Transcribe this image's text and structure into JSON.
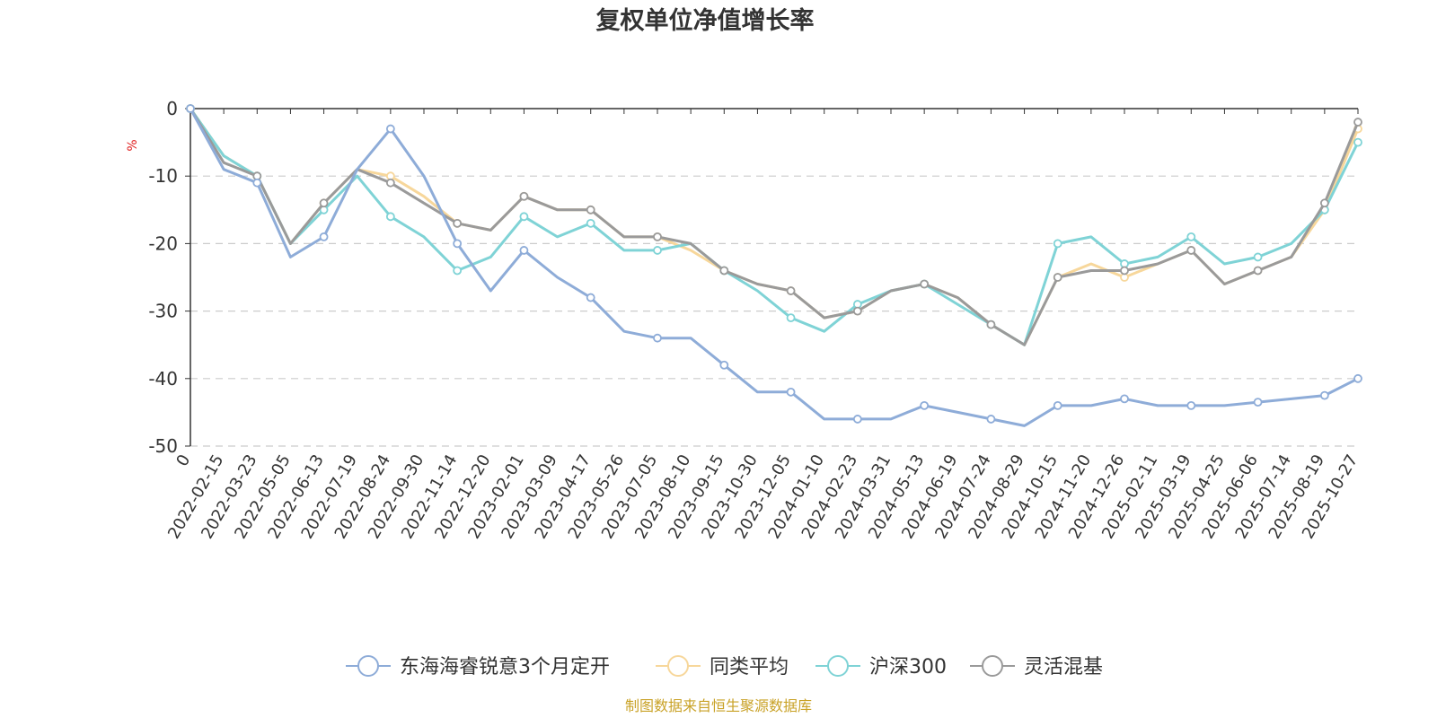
{
  "colors": {
    "fund": "#8eacd8",
    "peer": "#f7d79b",
    "hs300": "#7fd3d6",
    "flex": "#9a9a9a",
    "unit": "#e02020",
    "source": "#c9a227"
  },
  "chart_data": {
    "type": "line",
    "title": "复权单位净值增长率",
    "ylabel": "%",
    "ylim": [
      -50,
      0
    ],
    "yticks": [
      0,
      -10,
      -20,
      -30,
      -40,
      -50
    ],
    "grid": true,
    "legend_position": "bottom",
    "source": "制图数据来自恒生聚源数据库",
    "categories": [
      "0",
      "2022-02-15",
      "2022-03-23",
      "2022-05-05",
      "2022-06-13",
      "2022-07-19",
      "2022-08-24",
      "2022-09-30",
      "2022-11-14",
      "2022-12-20",
      "2023-02-01",
      "2023-03-09",
      "2023-04-17",
      "2023-05-26",
      "2023-07-05",
      "2023-08-10",
      "2023-09-15",
      "2023-10-30",
      "2023-12-05",
      "2024-01-10",
      "2024-02-23",
      "2024-03-31",
      "2024-05-13",
      "2024-06-19",
      "2024-07-24",
      "2024-08-29",
      "2024-10-15",
      "2024-11-20",
      "2024-12-26",
      "2025-02-11",
      "2025-03-19",
      "2025-04-25",
      "2025-06-06",
      "2025-07-14",
      "2025-08-19",
      "2025-10-27"
    ],
    "series": [
      {
        "name": "东海海睿锐意3个月定开",
        "color_key": "fund",
        "values": [
          0,
          -9,
          -11,
          -22,
          -19,
          -9,
          -3,
          -10,
          -20,
          -27,
          -21,
          -25,
          -28,
          -33,
          -34,
          -34,
          -38,
          -42,
          -42,
          -46,
          -46,
          -46,
          -44,
          -45,
          -46,
          -47,
          -44,
          -44,
          -43,
          -44,
          -44,
          -44,
          -43.5,
          -43,
          -42.5,
          -40
        ]
      },
      {
        "name": "同类平均",
        "color_key": "peer",
        "values": [
          0,
          -7,
          -10,
          -20,
          -14,
          -9,
          -10,
          -13,
          -17,
          -18,
          -13,
          -15,
          -15,
          -19,
          -19,
          -21,
          -24,
          -26,
          -27,
          -31,
          -30,
          -27,
          -26,
          -28,
          -32,
          -35,
          -25,
          -23,
          -25,
          -23,
          -21,
          -26,
          -24,
          -22,
          -15,
          -3
        ]
      },
      {
        "name": "沪深300",
        "color_key": "hs300",
        "values": [
          0,
          -7,
          -10,
          -20,
          -15,
          -10,
          -16,
          -19,
          -24,
          -22,
          -16,
          -19,
          -17,
          -21,
          -21,
          -20,
          -24,
          -27,
          -31,
          -33,
          -29,
          -27,
          -26,
          -29,
          -32,
          -35,
          -20,
          -19,
          -23,
          -22,
          -19,
          -23,
          -22,
          -20,
          -15,
          -5
        ]
      },
      {
        "name": "灵活混基",
        "color_key": "flex",
        "values": [
          0,
          -8,
          -10,
          -20,
          -14,
          -9,
          -11,
          -14,
          -17,
          -18,
          -13,
          -15,
          -15,
          -19,
          -19,
          -20,
          -24,
          -26,
          -27,
          -31,
          -30,
          -27,
          -26,
          -28,
          -32,
          -35,
          -25,
          -24,
          -24,
          -23,
          -21,
          -26,
          -24,
          -22,
          -14,
          -2
        ]
      }
    ]
  }
}
